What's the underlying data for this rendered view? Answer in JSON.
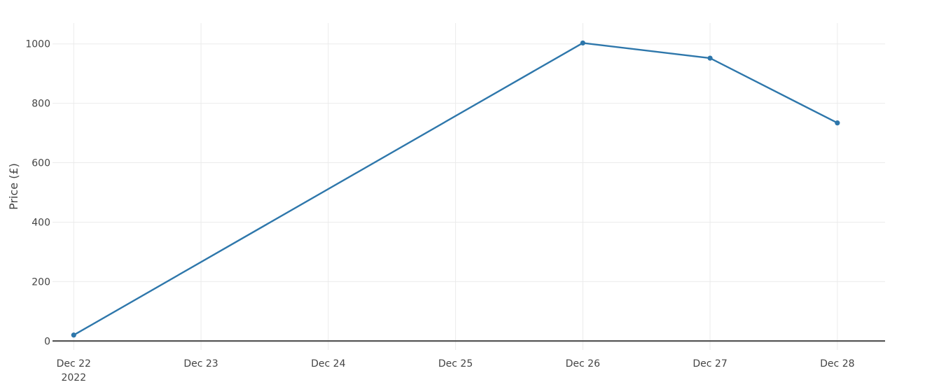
{
  "chart_data": {
    "type": "line",
    "ylabel": "Price (£)",
    "xlabel": "",
    "title": "",
    "ylim": [
      -30,
      1070
    ],
    "xlim": [
      "2022-12-21T20:00",
      "2022-12-28T09:00"
    ],
    "x_ticks": [
      {
        "date": "2022-12-22",
        "label": "Dec 22",
        "sublabel": "2022"
      },
      {
        "date": "2022-12-23",
        "label": "Dec 23"
      },
      {
        "date": "2022-12-24",
        "label": "Dec 24"
      },
      {
        "date": "2022-12-25",
        "label": "Dec 25"
      },
      {
        "date": "2022-12-26",
        "label": "Dec 26"
      },
      {
        "date": "2022-12-27",
        "label": "Dec 27"
      },
      {
        "date": "2022-12-28",
        "label": "Dec 28"
      }
    ],
    "y_ticks": [
      0,
      200,
      400,
      600,
      800,
      1000
    ],
    "grid": true,
    "series": [
      {
        "color": "#2e77ab",
        "points": [
          {
            "x": "2022-12-22",
            "y": 20
          },
          {
            "x": "2022-12-26",
            "y": 1003
          },
          {
            "x": "2022-12-27",
            "y": 952
          },
          {
            "x": "2022-12-28",
            "y": 734
          }
        ]
      }
    ]
  }
}
